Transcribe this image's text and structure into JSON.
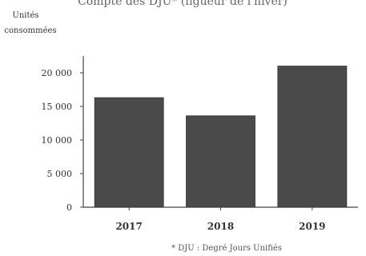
{
  "chart_data": {
    "type": "bar",
    "title": "Compte des DJU* (figueur de l'hiver)",
    "ylabel_lines": [
      "Unités",
      "consommées"
    ],
    "xlabel": "",
    "categories": [
      "2017",
      "2018",
      "2019"
    ],
    "values": [
      16300,
      13600,
      21000
    ],
    "ylim": [
      0,
      22500
    ],
    "yticks": [
      0,
      5000,
      10000,
      15000,
      20000
    ],
    "ytick_labels": [
      "0",
      "5 000",
      "10 000",
      "15 000",
      "20 000"
    ],
    "grid": false,
    "legend": "none",
    "footnote": "* DJU : Degré Jours Unifiés",
    "colors": {
      "bar": "#4a4a4a",
      "axis": "#444444"
    }
  }
}
